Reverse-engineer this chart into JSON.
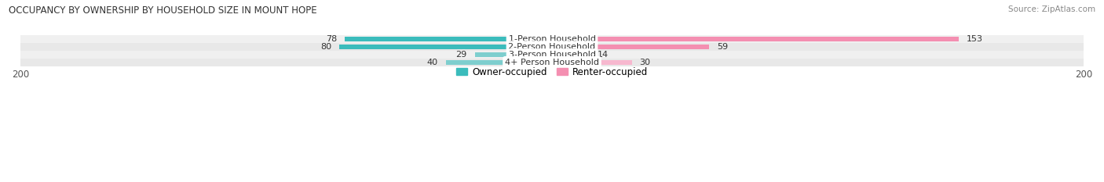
{
  "title": "OCCUPANCY BY OWNERSHIP BY HOUSEHOLD SIZE IN MOUNT HOPE",
  "source": "Source: ZipAtlas.com",
  "categories": [
    "1-Person Household",
    "2-Person Household",
    "3-Person Household",
    "4+ Person Household"
  ],
  "owner_values": [
    78,
    80,
    29,
    40
  ],
  "renter_values": [
    153,
    59,
    14,
    30
  ],
  "axis_max": 200,
  "owner_colors": [
    "#3bbcbc",
    "#3bbcbc",
    "#7ecece",
    "#7ecece"
  ],
  "renter_colors": [
    "#f48fb1",
    "#f48fb1",
    "#f7b8cf",
    "#f7b8cf"
  ],
  "row_bg_colors": [
    "#f0f0f0",
    "#e8e8e8",
    "#f0f0f0",
    "#e8e8e8"
  ],
  "title_color": "#333333",
  "source_color": "#888888",
  "label_color": "#333333",
  "value_color": "#333333",
  "legend_owner_color": "#3bbcbc",
  "legend_renter_color": "#f48fb1",
  "legend_owner_label": "Owner-occupied",
  "legend_renter_label": "Renter-occupied"
}
